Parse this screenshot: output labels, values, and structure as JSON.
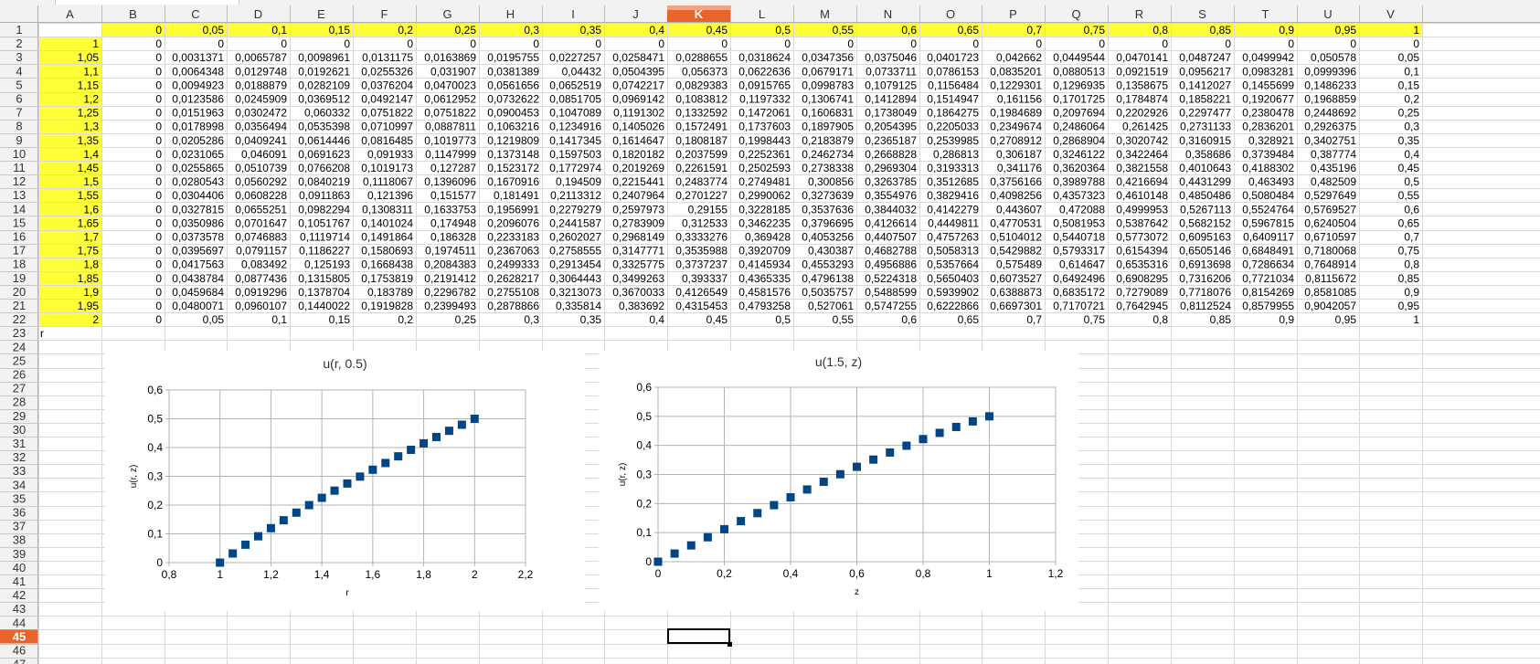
{
  "sheet": {
    "columns": [
      "A",
      "B",
      "C",
      "D",
      "E",
      "F",
      "G",
      "H",
      "I",
      "J",
      "K",
      "L",
      "M",
      "N",
      "O",
      "P",
      "Q",
      "R",
      "S",
      "T",
      "U",
      "V"
    ],
    "active_column": "K",
    "active_row": 45,
    "rows": [
      {
        "n": 1,
        "cells": [
          "",
          "0",
          "0,05",
          "0,1",
          "0,15",
          "0,2",
          "0,25",
          "0,3",
          "0,35",
          "0,4",
          "0,45",
          "0,5",
          "0,55",
          "0,6",
          "0,65",
          "0,7",
          "0,75",
          "0,8",
          "0,85",
          "0,9",
          "0,95",
          "1"
        ]
      },
      {
        "n": 2,
        "cells": [
          "1",
          "0",
          "0",
          "0",
          "0",
          "0",
          "0",
          "0",
          "0",
          "0",
          "0",
          "0",
          "0",
          "0",
          "0",
          "0",
          "0",
          "0",
          "0",
          "0",
          "0",
          "0"
        ]
      },
      {
        "n": 3,
        "cells": [
          "1,05",
          "0",
          "0,0031371",
          "0,0065787",
          "0,0098961",
          "0,0131175",
          "0,0163869",
          "0,0195755",
          "0,0227257",
          "0,0258471",
          "0,0288655",
          "0,0318624",
          "0,0347356",
          "0,0375046",
          "0,0401723",
          "0,042662",
          "0,0449544",
          "0,0470141",
          "0,0487247",
          "0,0499942",
          "0,050578",
          "0,05"
        ]
      },
      {
        "n": 4,
        "cells": [
          "1,1",
          "0",
          "0,0064348",
          "0,0129748",
          "0,0192621",
          "0,0255326",
          "0,031907",
          "0,0381389",
          "0,04432",
          "0,0504395",
          "0,056373",
          "0,0622636",
          "0,0679171",
          "0,0733711",
          "0,0786153",
          "0,0835201",
          "0,0880513",
          "0,0921519",
          "0,0956217",
          "0,0983281",
          "0,0999396",
          "0,1"
        ]
      },
      {
        "n": 5,
        "cells": [
          "1,15",
          "0",
          "0,0094923",
          "0,0188879",
          "0,0282109",
          "0,0376204",
          "0,0470023",
          "0,0561656",
          "0,0652519",
          "0,0742217",
          "0,0829383",
          "0,0915765",
          "0,0998783",
          "0,1079125",
          "0,1156484",
          "0,1229301",
          "0,1296935",
          "0,1358675",
          "0,1412027",
          "0,1455699",
          "0,1486233",
          "0,15"
        ]
      },
      {
        "n": 6,
        "cells": [
          "1,2",
          "0",
          "0,0123586",
          "0,0245909",
          "0,0369512",
          "0,0492147",
          "0,0612952",
          "0,0732622",
          "0,0851705",
          "0,0969142",
          "0,1083812",
          "0,1197332",
          "0,1306741",
          "0,1412894",
          "0,1514947",
          "0,161156",
          "0,1701725",
          "0,1784874",
          "0,1858221",
          "0,1920677",
          "0,1968859",
          "0,2"
        ]
      },
      {
        "n": 7,
        "cells": [
          "1,25",
          "0",
          "0,0151963",
          "0,0302472",
          "0,060332",
          "0,0751822",
          "0,0751822",
          "0,0900453",
          "0,1047089",
          "0,1191302",
          "0,1332592",
          "0,1472061",
          "0,1606831",
          "0,1738049",
          "0,1864275",
          "0,1984689",
          "0,2097694",
          "0,2202926",
          "0,2297477",
          "0,2380478",
          "0,2448692",
          "0,25"
        ]
      },
      {
        "n": 8,
        "cells": [
          "1,3",
          "0",
          "0,0178998",
          "0,0356494",
          "0,0535398",
          "0,0710997",
          "0,0887811",
          "0,1063216",
          "0,1234916",
          "0,1405026",
          "0,1572491",
          "0,1737603",
          "0,1897905",
          "0,2054395",
          "0,2205033",
          "0,2349674",
          "0,2486064",
          "0,261425",
          "0,2731133",
          "0,2836201",
          "0,2926375",
          "0,3"
        ]
      },
      {
        "n": 9,
        "cells": [
          "1,35",
          "0",
          "0,0205286",
          "0,0409241",
          "0,0614446",
          "0,0816485",
          "0,1019773",
          "0,1219809",
          "0,1417345",
          "0,1614647",
          "0,1808187",
          "0,1998443",
          "0,2183879",
          "0,2365187",
          "0,2539985",
          "0,2708912",
          "0,2868904",
          "0,3020742",
          "0,3160915",
          "0,328921",
          "0,3402751",
          "0,35"
        ]
      },
      {
        "n": 10,
        "cells": [
          "1,4",
          "0",
          "0,0231065",
          "0,046091",
          "0,0691623",
          "0,091933",
          "0,1147999",
          "0,1373148",
          "0,1597503",
          "0,1820182",
          "0,2037599",
          "0,2252361",
          "0,2462734",
          "0,2668828",
          "0,286813",
          "0,306187",
          "0,3246122",
          "0,3422464",
          "0,358686",
          "0,3739484",
          "0,387774",
          "0,4"
        ]
      },
      {
        "n": 11,
        "cells": [
          "1,45",
          "0",
          "0,0255865",
          "0,0510739",
          "0,0766208",
          "0,1019173",
          "0,127287",
          "0,1523172",
          "0,1772974",
          "0,2019269",
          "0,2261591",
          "0,2502593",
          "0,2738338",
          "0,2969304",
          "0,3193313",
          "0,341176",
          "0,3620364",
          "0,3821558",
          "0,4010643",
          "0,4188302",
          "0,435196",
          "0,45"
        ]
      },
      {
        "n": 12,
        "cells": [
          "1,5",
          "0",
          "0,0280543",
          "0,0560292",
          "0,0840219",
          "0,1118067",
          "0,1396096",
          "0,1670916",
          "0,194509",
          "0,2215441",
          "0,2483774",
          "0,2749481",
          "0,300856",
          "0,3263785",
          "0,3512685",
          "0,3756166",
          "0,3989788",
          "0,4216694",
          "0,4431299",
          "0,463493",
          "0,482509",
          "0,5"
        ]
      },
      {
        "n": 13,
        "cells": [
          "1,55",
          "0",
          "0,0304406",
          "0,0608228",
          "0,0911863",
          "0,121396",
          "0,151577",
          "0,181491",
          "0,2113312",
          "0,2407964",
          "0,2701227",
          "0,2990062",
          "0,3273639",
          "0,3554976",
          "0,3829416",
          "0,4098256",
          "0,4357323",
          "0,4610148",
          "0,4850486",
          "0,5080484",
          "0,5297649",
          "0,55"
        ]
      },
      {
        "n": 14,
        "cells": [
          "1,6",
          "0",
          "0,0327815",
          "0,0655251",
          "0,0982294",
          "0,1308311",
          "0,1633753",
          "0,1956991",
          "0,2279279",
          "0,2597973",
          "0,29155",
          "0,3228185",
          "0,3537636",
          "0,3844032",
          "0,4142279",
          "0,443607",
          "0,472088",
          "0,4999953",
          "0,5267113",
          "0,5524764",
          "0,5769527",
          "0,6"
        ]
      },
      {
        "n": 15,
        "cells": [
          "1,65",
          "0",
          "0,0350986",
          "0,0701647",
          "0,1051767",
          "0,1401024",
          "0,174948",
          "0,2096076",
          "0,2441587",
          "0,2783909",
          "0,312533",
          "0,3462235",
          "0,3796695",
          "0,4126614",
          "0,4449811",
          "0,4770531",
          "0,5081953",
          "0,5387642",
          "0,5682152",
          "0,5967815",
          "0,6240504",
          "0,65"
        ]
      },
      {
        "n": 16,
        "cells": [
          "1,7",
          "0",
          "0,0373578",
          "0,0746883",
          "0,1119714",
          "0,1491864",
          "0,186328",
          "0,2233183",
          "0,2602027",
          "0,2968149",
          "0,3333276",
          "0,369428",
          "0,4053256",
          "0,4407507",
          "0,4757263",
          "0,5104012",
          "0,5440718",
          "0,5773072",
          "0,6095163",
          "0,6409117",
          "0,6710597",
          "0,7"
        ]
      },
      {
        "n": 17,
        "cells": [
          "1,75",
          "0",
          "0,0395697",
          "0,0791157",
          "0,1186227",
          "0,1580693",
          "0,1974511",
          "0,2367063",
          "0,2758555",
          "0,3147771",
          "0,3535988",
          "0,3920709",
          "0,430387",
          "0,4682788",
          "0,5058313",
          "0,5429882",
          "0,5793317",
          "0,6154394",
          "0,6505146",
          "0,6848491",
          "0,7180068",
          "0,75"
        ]
      },
      {
        "n": 18,
        "cells": [
          "1,8",
          "0",
          "0,0417563",
          "0,083492",
          "0,125193",
          "0,1668438",
          "0,2084383",
          "0,2499333",
          "0,2913454",
          "0,3325775",
          "0,3737237",
          "0,4145934",
          "0,4553293",
          "0,4956886",
          "0,5357664",
          "0,575489",
          "0,614647",
          "0,6535316",
          "0,6913698",
          "0,7286634",
          "0,7648914",
          "0,8"
        ]
      },
      {
        "n": 19,
        "cells": [
          "1,85",
          "0",
          "0,0438784",
          "0,0877436",
          "0,1315805",
          "0,1753819",
          "0,2191412",
          "0,2628217",
          "0,3064443",
          "0,3499263",
          "0,393337",
          "0,4365335",
          "0,4796138",
          "0,5224318",
          "0,5650403",
          "0,6073527",
          "0,6492496",
          "0,6908295",
          "0,7316206",
          "0,7721034",
          "0,8115672",
          "0,85"
        ]
      },
      {
        "n": 20,
        "cells": [
          "1,9",
          "0",
          "0,0459684",
          "0,0919296",
          "0,1378704",
          "0,183789",
          "0,2296782",
          "0,2755108",
          "0,3213073",
          "0,3670033",
          "0,4126549",
          "0,4581576",
          "0,5035757",
          "0,5488599",
          "0,5939902",
          "0,6388873",
          "0,6835172",
          "0,7279089",
          "0,7718076",
          "0,8154269",
          "0,8581085",
          "0,9"
        ]
      },
      {
        "n": 21,
        "cells": [
          "1,95",
          "0",
          "0,0480071",
          "0,0960107",
          "0,1440022",
          "0,1919828",
          "0,2399493",
          "0,2878866",
          "0,335814",
          "0,383692",
          "0,4315453",
          "0,4793258",
          "0,527061",
          "0,5747255",
          "0,6222866",
          "0,6697301",
          "0,7170721",
          "0,7642945",
          "0,8112524",
          "0,8579955",
          "0,9042057",
          "0,95"
        ]
      },
      {
        "n": 22,
        "cells": [
          "2",
          "0",
          "0,05",
          "0,1",
          "0,15",
          "0,2",
          "0,25",
          "0,3",
          "0,35",
          "0,4",
          "0,45",
          "0,5",
          "0,55",
          "0,6",
          "0,65",
          "0,7",
          "0,75",
          "0,8",
          "0,85",
          "0,9",
          "0,95",
          "1"
        ]
      },
      {
        "n": 23,
        "cells": [
          "r"
        ]
      },
      {
        "n": 24,
        "cells": []
      },
      {
        "n": 25,
        "cells": []
      },
      {
        "n": 26,
        "cells": []
      },
      {
        "n": 27,
        "cells": []
      },
      {
        "n": 28,
        "cells": []
      },
      {
        "n": 29,
        "cells": []
      },
      {
        "n": 30,
        "cells": []
      },
      {
        "n": 31,
        "cells": []
      },
      {
        "n": 32,
        "cells": []
      },
      {
        "n": 33,
        "cells": []
      },
      {
        "n": 34,
        "cells": []
      },
      {
        "n": 35,
        "cells": []
      },
      {
        "n": 36,
        "cells": []
      },
      {
        "n": 37,
        "cells": []
      },
      {
        "n": 38,
        "cells": []
      },
      {
        "n": 39,
        "cells": []
      },
      {
        "n": 40,
        "cells": []
      },
      {
        "n": 41,
        "cells": []
      },
      {
        "n": 42,
        "cells": []
      },
      {
        "n": 43,
        "cells": []
      },
      {
        "n": 44,
        "cells": []
      },
      {
        "n": 45,
        "cells": []
      },
      {
        "n": 46,
        "cells": []
      },
      {
        "n": 47,
        "cells": []
      }
    ]
  },
  "colors": {
    "highlight": "#ffff38",
    "active_header": "#e9632c",
    "header_bg": "#f2f2f2",
    "grid_line": "#d9d9d9",
    "marker": "#004586"
  },
  "chart_data": [
    {
      "type": "scatter",
      "title": "u(r, 0.5)",
      "xlabel": "r",
      "ylabel": "u(r, z)",
      "xlim": [
        0.8,
        2.2
      ],
      "ylim": [
        0,
        0.6
      ],
      "xticks": [
        "0,8",
        "1",
        "1,2",
        "1,4",
        "1,6",
        "1,8",
        "2",
        "2,2"
      ],
      "yticks": [
        "0",
        "0,1",
        "0,2",
        "0,3",
        "0,4",
        "0,5",
        "0,6"
      ],
      "grid": true,
      "legend": "none",
      "x": [
        1,
        1.05,
        1.1,
        1.15,
        1.2,
        1.25,
        1.3,
        1.35,
        1.4,
        1.45,
        1.5,
        1.55,
        1.6,
        1.65,
        1.7,
        1.75,
        1.8,
        1.85,
        1.9,
        1.95,
        2
      ],
      "y": [
        0,
        0.0318624,
        0.0622636,
        0.0915765,
        0.1197332,
        0.1472061,
        0.1737603,
        0.1998443,
        0.2252361,
        0.2502593,
        0.2749481,
        0.2990062,
        0.3228185,
        0.3462235,
        0.369428,
        0.3920709,
        0.4145934,
        0.4365335,
        0.4581576,
        0.4793258,
        0.5
      ]
    },
    {
      "type": "scatter",
      "title": "u(1.5, z)",
      "xlabel": "z",
      "ylabel": "u(r, z)",
      "xlim": [
        0,
        1.2
      ],
      "ylim": [
        0,
        0.6
      ],
      "xticks": [
        "0",
        "0,2",
        "0,4",
        "0,6",
        "0,8",
        "1",
        "1,2"
      ],
      "yticks": [
        "0",
        "0,1",
        "0,2",
        "0,3",
        "0,4",
        "0,5",
        "0,6"
      ],
      "grid": true,
      "legend": "none",
      "x": [
        0,
        0.05,
        0.1,
        0.15,
        0.2,
        0.25,
        0.3,
        0.35,
        0.4,
        0.45,
        0.5,
        0.55,
        0.6,
        0.65,
        0.7,
        0.75,
        0.8,
        0.85,
        0.9,
        0.95,
        1
      ],
      "y": [
        0,
        0.0280543,
        0.0560292,
        0.0840219,
        0.1118067,
        0.1396096,
        0.1670916,
        0.194509,
        0.2215441,
        0.2483774,
        0.2749481,
        0.300856,
        0.3263785,
        0.3512685,
        0.3756166,
        0.3989788,
        0.4216694,
        0.4431299,
        0.463493,
        0.482509,
        0.5
      ]
    }
  ]
}
